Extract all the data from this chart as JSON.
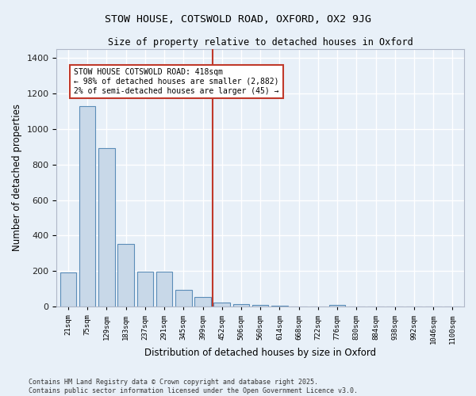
{
  "title": "STOW HOUSE, COTSWOLD ROAD, OXFORD, OX2 9JG",
  "subtitle": "Size of property relative to detached houses in Oxford",
  "xlabel": "Distribution of detached houses by size in Oxford",
  "ylabel": "Number of detached properties",
  "categories": [
    "21sqm",
    "75sqm",
    "129sqm",
    "183sqm",
    "237sqm",
    "291sqm",
    "345sqm",
    "399sqm",
    "452sqm",
    "506sqm",
    "560sqm",
    "614sqm",
    "668sqm",
    "722sqm",
    "776sqm",
    "830sqm",
    "884sqm",
    "938sqm",
    "992sqm",
    "1046sqm",
    "1100sqm"
  ],
  "values": [
    193,
    1130,
    893,
    352,
    197,
    197,
    95,
    55,
    22,
    15,
    10,
    5,
    0,
    0,
    8,
    0,
    0,
    0,
    0,
    0,
    0
  ],
  "bar_color": "#c8d8e8",
  "bar_edge_color": "#5b8db8",
  "vline_color": "#c0392b",
  "annotation_text": "STOW HOUSE COTSWOLD ROAD: 418sqm\n← 98% of detached houses are smaller (2,882)\n2% of semi-detached houses are larger (45) →",
  "annotation_box_color": "#ffffff",
  "annotation_box_edge": "#c0392b",
  "ylim": [
    0,
    1450
  ],
  "yticks": [
    0,
    200,
    400,
    600,
    800,
    1000,
    1200,
    1400
  ],
  "background_color": "#e8f0f8",
  "grid_color": "#ffffff",
  "footer_line1": "Contains HM Land Registry data © Crown copyright and database right 2025.",
  "footer_line2": "Contains public sector information licensed under the Open Government Licence v3.0."
}
